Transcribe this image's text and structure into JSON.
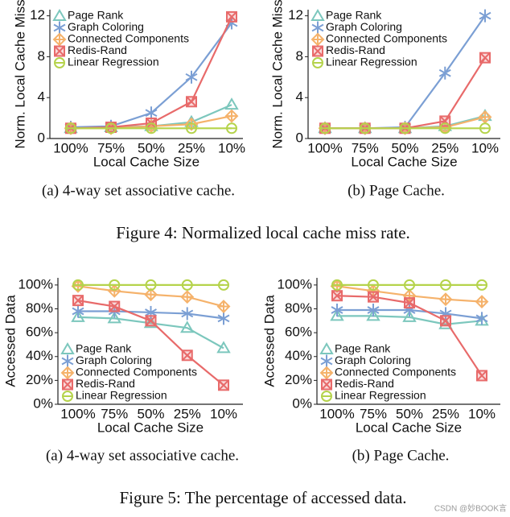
{
  "chart_data": [
    {
      "type": "line",
      "caption": "(a) 4-way set associative cache.",
      "x_label": "Local Cache Size",
      "y_label": "Norm. Local Cache Miss",
      "categories": [
        "100%",
        "75%",
        "50%",
        "25%",
        "10%"
      ],
      "ylim": [
        0,
        12.6
      ],
      "yticks": [
        0,
        4,
        8,
        12
      ],
      "legend": "upper left",
      "series": [
        {
          "name": "Page Rank",
          "color": "#7cc7bd",
          "marker": "triangle",
          "values": [
            1.0,
            1.1,
            1.2,
            1.6,
            3.3
          ]
        },
        {
          "name": "Graph Coloring",
          "color": "#7b9fd4",
          "marker": "star",
          "values": [
            1.1,
            1.2,
            2.5,
            6.0,
            11.3
          ]
        },
        {
          "name": "Connected Components",
          "color": "#f5b26b",
          "marker": "diamond",
          "values": [
            1.0,
            1.0,
            1.2,
            1.4,
            2.2
          ]
        },
        {
          "name": "Redis-Rand",
          "color": "#e86a6a",
          "marker": "square",
          "values": [
            1.0,
            1.1,
            1.5,
            3.6,
            11.9
          ]
        },
        {
          "name": "Linear Regression",
          "color": "#b5d34b",
          "marker": "circle",
          "values": [
            1.0,
            1.0,
            1.0,
            1.0,
            1.0
          ]
        }
      ]
    },
    {
      "type": "line",
      "caption": "(b) Page Cache.",
      "x_label": "Local Cache Size",
      "y_label": "Norm. Local Cache Miss",
      "categories": [
        "100%",
        "75%",
        "50%",
        "25%",
        "10%"
      ],
      "ylim": [
        0,
        12.6
      ],
      "yticks": [
        0,
        4,
        8,
        12
      ],
      "legend": "upper left",
      "series": [
        {
          "name": "Page Rank",
          "color": "#7cc7bd",
          "marker": "triangle",
          "values": [
            1.0,
            1.0,
            1.0,
            1.2,
            2.2
          ]
        },
        {
          "name": "Graph Coloring",
          "color": "#7b9fd4",
          "marker": "star",
          "values": [
            1.0,
            1.0,
            1.1,
            6.4,
            12.0
          ]
        },
        {
          "name": "Connected Components",
          "color": "#f5b26b",
          "marker": "diamond",
          "values": [
            1.0,
            1.0,
            1.0,
            1.1,
            2.1
          ]
        },
        {
          "name": "Redis-Rand",
          "color": "#e86a6a",
          "marker": "square",
          "values": [
            1.0,
            1.0,
            1.0,
            1.7,
            7.9
          ]
        },
        {
          "name": "Linear Regression",
          "color": "#b5d34b",
          "marker": "circle",
          "values": [
            1.0,
            1.0,
            1.0,
            1.0,
            1.0
          ]
        }
      ]
    },
    {
      "type": "line",
      "caption": "(a) 4-way set associative cache.",
      "x_label": "Local Cache Size",
      "y_label": "Accessed Data",
      "categories": [
        "100%",
        "75%",
        "50%",
        "25%",
        "10%"
      ],
      "ylim": [
        0,
        106
      ],
      "yticks": [
        {
          "value": 0,
          "label": "0%"
        },
        {
          "value": 20,
          "label": "20%"
        },
        {
          "value": 40,
          "label": "40%"
        },
        {
          "value": 60,
          "label": "60%"
        },
        {
          "value": 80,
          "label": "80%"
        },
        {
          "value": 100,
          "label": "100%"
        }
      ],
      "legend": "lower left",
      "series": [
        {
          "name": "Page Rank",
          "color": "#7cc7bd",
          "marker": "triangle",
          "values": [
            73,
            72,
            68,
            64,
            47
          ]
        },
        {
          "name": "Graph Coloring",
          "color": "#7b9fd4",
          "marker": "star",
          "values": [
            78,
            78,
            77,
            76,
            72
          ]
        },
        {
          "name": "Connected Components",
          "color": "#f5b26b",
          "marker": "diamond",
          "values": [
            99,
            95,
            92,
            90,
            82
          ]
        },
        {
          "name": "Redis-Rand",
          "color": "#e86a6a",
          "marker": "square",
          "values": [
            87,
            82,
            70,
            41,
            16
          ]
        },
        {
          "name": "Linear Regression",
          "color": "#b5d34b",
          "marker": "circle",
          "values": [
            100,
            100,
            100,
            100,
            100
          ]
        }
      ]
    },
    {
      "type": "line",
      "caption": "(b) Page Cache.",
      "x_label": "Local Cache Size",
      "y_label": "Accessed Data",
      "categories": [
        "100%",
        "75%",
        "50%",
        "25%",
        "10%"
      ],
      "ylim": [
        0,
        106
      ],
      "yticks": [
        {
          "value": 0,
          "label": "0%"
        },
        {
          "value": 20,
          "label": "20%"
        },
        {
          "value": 40,
          "label": "40%"
        },
        {
          "value": 60,
          "label": "60%"
        },
        {
          "value": 80,
          "label": "80%"
        },
        {
          "value": 100,
          "label": "100%"
        }
      ],
      "legend": "lower left",
      "series": [
        {
          "name": "Page Rank",
          "color": "#7cc7bd",
          "marker": "triangle",
          "values": [
            74,
            74,
            73,
            67,
            70
          ]
        },
        {
          "name": "Graph Coloring",
          "color": "#7b9fd4",
          "marker": "star",
          "values": [
            79,
            79,
            79,
            76,
            72
          ]
        },
        {
          "name": "Connected Components",
          "color": "#f5b26b",
          "marker": "diamond",
          "values": [
            99,
            95,
            91,
            88,
            86
          ]
        },
        {
          "name": "Redis-Rand",
          "color": "#e86a6a",
          "marker": "square",
          "values": [
            91,
            90,
            85,
            70,
            24
          ]
        },
        {
          "name": "Linear Regression",
          "color": "#b5d34b",
          "marker": "circle",
          "values": [
            100,
            100,
            100,
            100,
            100
          ]
        }
      ]
    }
  ],
  "figure_captions": [
    "Figure 4: Normalized local cache miss rate.",
    "Figure 5: The percentage of accessed data."
  ],
  "watermark": "CSDN @妙BOOK言"
}
